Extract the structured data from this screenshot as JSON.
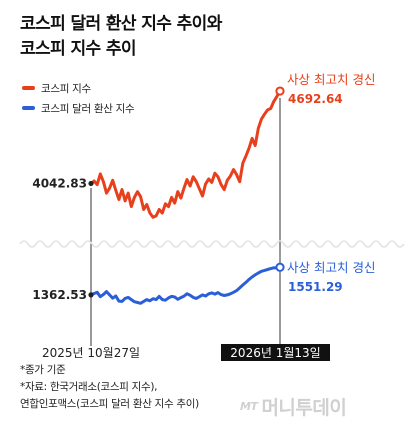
{
  "title": {
    "line1": "코스피 달러 환산 지수 추이와",
    "line2": "코스피 지수 추이"
  },
  "legend": [
    {
      "label": "코스피 지수",
      "color": "#e8401c"
    },
    {
      "label": "코스피 달러 환산 지수",
      "color": "#2b5fd9"
    }
  ],
  "chart_data": {
    "type": "line",
    "x_axis": {
      "start_label": "2025년 10월27일",
      "end_label": "2026년 1월13일",
      "start_date": "2025-10-27",
      "end_date": "2026-01-13"
    },
    "series": [
      {
        "name": "코스피 지수",
        "color": "#e8401c",
        "start_value": 4042.83,
        "end_value": 4692.64,
        "end_annotation": "사상 최고치 경신",
        "values": [
          4042.83,
          4060,
          4035,
          4110,
          4055,
          3975,
          4010,
          4065,
          3995,
          3930,
          4000,
          3920,
          3975,
          3880,
          3945,
          3985,
          3950,
          3860,
          3895,
          3835,
          3805,
          3815,
          3860,
          3835,
          3900,
          3880,
          3945,
          3905,
          3985,
          3940,
          4010,
          4070,
          4025,
          4090,
          4055,
          4005,
          3955,
          4040,
          4075,
          4050,
          4115,
          4090,
          4035,
          4000,
          4065,
          4095,
          4140,
          4105,
          4055,
          4185,
          4235,
          4290,
          4360,
          4310,
          4430,
          4495,
          4530,
          4560,
          4570,
          4620,
          4655,
          4692.64
        ]
      },
      {
        "name": "코스피 달러 환산 지수",
        "color": "#2b5fd9",
        "start_value": 1362.53,
        "end_value": 1551.29,
        "end_annotation": "사상 최고치 경신",
        "values": [
          1362.53,
          1372,
          1380,
          1350,
          1365,
          1385,
          1362,
          1340,
          1355,
          1320,
          1318,
          1338,
          1345,
          1330,
          1316,
          1310,
          1305,
          1318,
          1330,
          1322,
          1336,
          1330,
          1352,
          1330,
          1326,
          1342,
          1352,
          1348,
          1332,
          1344,
          1354,
          1370,
          1360,
          1345,
          1338,
          1350,
          1362,
          1355,
          1370,
          1376,
          1368,
          1378,
          1364,
          1358,
          1362,
          1370,
          1380,
          1392,
          1410,
          1430,
          1448,
          1468,
          1485,
          1500,
          1512,
          1524,
          1530,
          1536,
          1542,
          1548,
          1546,
          1551.29
        ]
      }
    ]
  },
  "footer": {
    "note": "*종가 기준",
    "source_line1": "*자료: 한국거래소(코스피 지수),",
    "source_line2": "연합인포맥스(코스피 달러 환산 지수 추이)"
  },
  "brand": {
    "mark": "MT",
    "name": "머니투데이",
    "color": "#d0d0d0"
  }
}
